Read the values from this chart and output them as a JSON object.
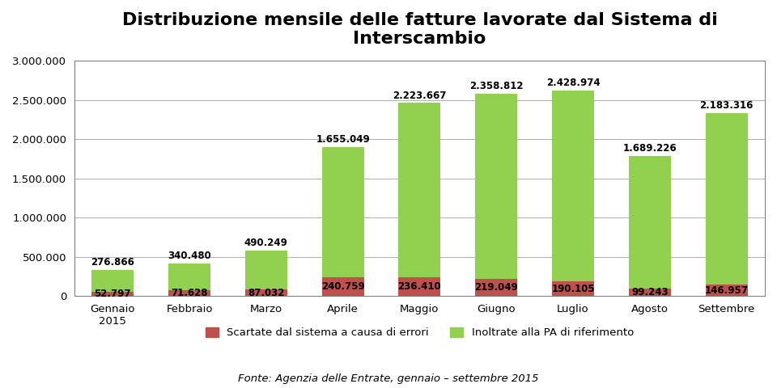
{
  "title_line1": "Distribuzione mensile delle fatture lavorate dal Sistema di",
  "title_line2": "Interscambio",
  "categories": [
    "Gennaio\n2015",
    "Febbraio",
    "Marzo",
    "Aprile",
    "Maggio",
    "Giugno",
    "Luglio",
    "Agosto",
    "Settembre"
  ],
  "red_values": [
    52797,
    71628,
    87032,
    240759,
    236410,
    219049,
    190105,
    99243,
    146957
  ],
  "green_values": [
    276866,
    340480,
    490249,
    1655049,
    2223667,
    2358812,
    2428974,
    1689226,
    2183316
  ],
  "red_labels": [
    "52.797",
    "71.628",
    "87.032",
    "240.759",
    "236.410",
    "219.049",
    "190.105",
    "99.243",
    "146.957"
  ],
  "green_labels": [
    "276.866",
    "340.480",
    "490.249",
    "1.655.049",
    "2.223.667",
    "2.358.812",
    "2.428.974",
    "1.689.226",
    "2.183.316"
  ],
  "red_color": "#c0504d",
  "green_color": "#92d050",
  "ylim": [
    0,
    3000000
  ],
  "yticks": [
    0,
    500000,
    1000000,
    1500000,
    2000000,
    2500000,
    3000000
  ],
  "ytick_labels": [
    "0",
    "500.000",
    "1.000.000",
    "1.500.000",
    "2.000.000",
    "2.500.000",
    "3.000.000"
  ],
  "legend_red": "Scartate dal sistema a causa di errori",
  "legend_green": "Inoltrate alla PA di riferimento",
  "source_text": "Fonte: Agenzia delle Entrate, gennaio – settembre 2015",
  "background_color": "#ffffff",
  "chart_bg": "#ffffff",
  "border_color": "#808080",
  "title_fontsize": 16,
  "label_fontsize": 8.5,
  "axis_fontsize": 9.5,
  "legend_fontsize": 9.5
}
